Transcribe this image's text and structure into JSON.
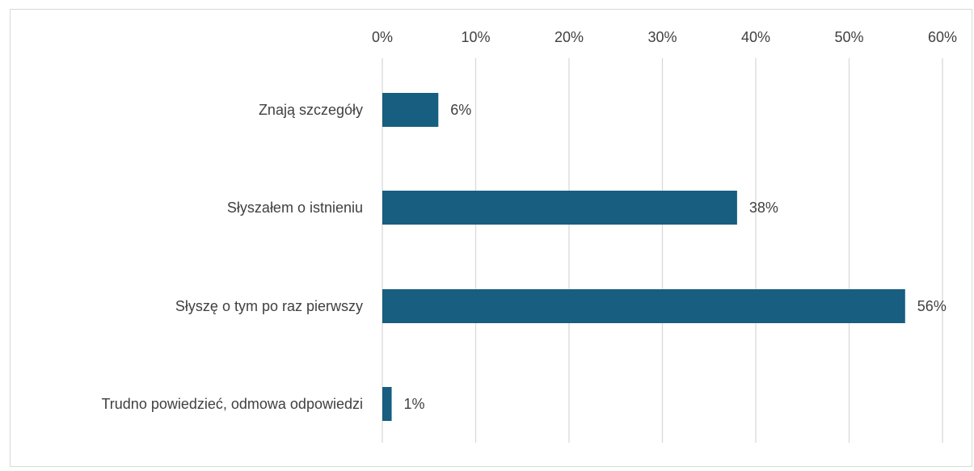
{
  "chart_data": {
    "type": "bar",
    "orientation": "horizontal",
    "categories": [
      "Znają szczegóły",
      "Słyszałem o istnieniu",
      "Słyszę o tym po raz pierwszy",
      "Trudno powiedzieć, odmowa odpowiedzi"
    ],
    "values": [
      6,
      38,
      56,
      1
    ],
    "data_labels": [
      "6%",
      "38%",
      "56%",
      "1%"
    ],
    "xlim": [
      0,
      60
    ],
    "x_ticks": [
      "0%",
      "10%",
      "20%",
      "30%",
      "40%",
      "50%",
      "60%"
    ],
    "x_tick_values": [
      0,
      10,
      20,
      30,
      40,
      50,
      60
    ],
    "x_axis_position": "top",
    "grid": true,
    "legend": false,
    "bar_color": "#175e80",
    "grid_color": "#d9d9d9",
    "text_color": "#404040"
  }
}
